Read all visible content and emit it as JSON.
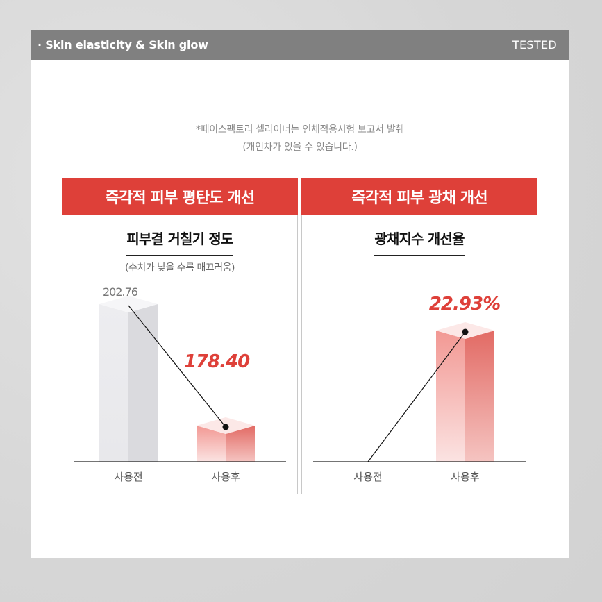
{
  "header": {
    "title": "· Skin elasticity & Skin glow",
    "tag": "TESTED"
  },
  "notes": {
    "line1": "*페이스팩토리 셀라이너는 인체적용시험 보고서 발췌",
    "line2": "(개인차가 있을 수 있습니다.)"
  },
  "colors": {
    "accent": "#de4039",
    "header_bg": "#808080"
  },
  "chart_data": [
    {
      "type": "bar",
      "title": "즉각적 피부 평탄도 개선",
      "subtitle": "피부결 거칠기 정도",
      "annotation": "(수치가 낮을 수록 매끄러움)",
      "categories": [
        "사용전",
        "사용후"
      ],
      "values": [
        202.76,
        178.4
      ],
      "value_labels": [
        "202.76",
        "178.40"
      ],
      "ylim": [
        160,
        212
      ],
      "grid": false,
      "legend": "none"
    },
    {
      "type": "bar",
      "title": "즉각적 피부 광채 개선",
      "subtitle": "광채지수 개선율",
      "categories": [
        "사용전",
        "사용후"
      ],
      "values": [
        0,
        22.93
      ],
      "value_labels": [
        "",
        "22.93%"
      ],
      "ylim": [
        0,
        26
      ],
      "grid": false,
      "legend": "none"
    }
  ]
}
